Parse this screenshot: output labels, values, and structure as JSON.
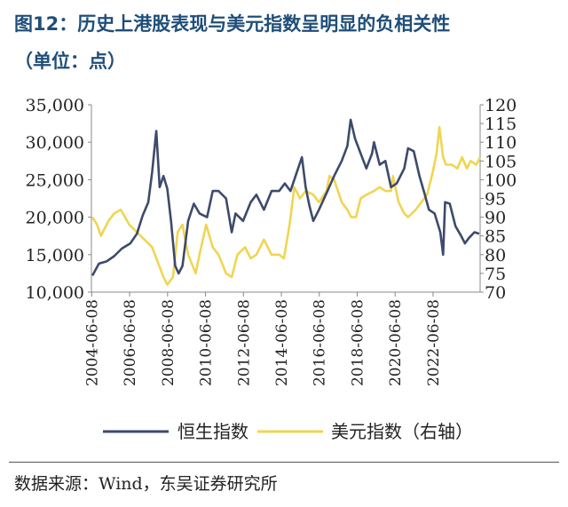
{
  "figure": {
    "title_line1": "图12：历史上港股表现与美元指数呈明显的负相关性",
    "title_line2": "（单位：点）",
    "source_label": "数据来源：",
    "source_text": "Wind，东吴证券研究所"
  },
  "colors": {
    "hsi": "#3d4a6b",
    "dxy": "#f0d552",
    "title": "#1f4e79"
  },
  "chart_data": {
    "type": "line",
    "title": "历史上港股表现与美元指数呈明显的负相关性",
    "ylabel_left": "",
    "ylabel_right": "",
    "x_ticks": [
      "2004-06-08",
      "2006-06-08",
      "2008-06-08",
      "2010-06-08",
      "2012-06-08",
      "2014-06-08",
      "2016-06-08",
      "2018-06-08",
      "2020-06-08",
      "2022-06-08"
    ],
    "x_range": [
      2004.4,
      2024.9
    ],
    "ylim_left": [
      10000,
      35000
    ],
    "ylim_right": [
      70,
      120
    ],
    "left_tick_labels": [
      "10,000",
      "15,000",
      "20,000",
      "25,000",
      "30,000",
      "35,000"
    ],
    "right_tick_labels": [
      "70",
      "75",
      "80",
      "85",
      "90",
      "95",
      "100",
      "105",
      "110",
      "115",
      "120"
    ],
    "series": [
      {
        "name": "恒生指数",
        "axis": "left",
        "x": [
          2004.45,
          2004.8,
          2005.2,
          2005.6,
          2006.0,
          2006.45,
          2006.8,
          2007.1,
          2007.4,
          2007.6,
          2007.82,
          2008.0,
          2008.2,
          2008.4,
          2008.6,
          2008.82,
          2009.0,
          2009.2,
          2009.5,
          2009.8,
          2010.1,
          2010.5,
          2010.8,
          2011.1,
          2011.5,
          2011.8,
          2012.0,
          2012.4,
          2012.8,
          2013.1,
          2013.5,
          2013.9,
          2014.3,
          2014.6,
          2014.9,
          2015.3,
          2015.5,
          2015.7,
          2015.9,
          2016.1,
          2016.4,
          2016.8,
          2017.2,
          2017.6,
          2017.9,
          2018.07,
          2018.3,
          2018.6,
          2018.9,
          2019.2,
          2019.3,
          2019.6,
          2019.9,
          2020.2,
          2020.5,
          2020.9,
          2021.1,
          2021.4,
          2021.7,
          2021.95,
          2022.2,
          2022.5,
          2022.8,
          2022.95,
          2023.05,
          2023.3,
          2023.6,
          2023.9,
          2024.1,
          2024.3,
          2024.6,
          2024.85
        ],
        "values": [
          12200,
          13800,
          14100,
          14800,
          15800,
          16500,
          17800,
          20200,
          22000,
          26000,
          31500,
          24000,
          25500,
          23800,
          19500,
          13500,
          12500,
          13500,
          19500,
          21800,
          20500,
          20000,
          23500,
          23500,
          22500,
          18000,
          20500,
          19500,
          22000,
          23000,
          21000,
          23500,
          23500,
          24500,
          23500,
          26500,
          28000,
          24000,
          21500,
          19500,
          21000,
          23200,
          25500,
          27500,
          29500,
          33000,
          30500,
          28500,
          26500,
          28500,
          30000,
          27000,
          27500,
          24000,
          24500,
          26500,
          29200,
          28800,
          25500,
          23300,
          21000,
          20500,
          18000,
          15000,
          22000,
          21800,
          18800,
          17500,
          16500,
          17200,
          18000,
          17800
        ]
      },
      {
        "name": "美元指数（右轴）",
        "axis": "right",
        "x": [
          2004.45,
          2004.7,
          2004.9,
          2005.3,
          2005.6,
          2005.95,
          2006.4,
          2006.8,
          2007.2,
          2007.6,
          2007.9,
          2008.2,
          2008.4,
          2008.7,
          2008.95,
          2009.2,
          2009.5,
          2009.9,
          2010.1,
          2010.45,
          2010.8,
          2011.1,
          2011.5,
          2011.8,
          2012.1,
          2012.5,
          2012.8,
          2013.1,
          2013.5,
          2013.9,
          2014.3,
          2014.55,
          2014.85,
          2015.1,
          2015.4,
          2015.7,
          2016.1,
          2016.4,
          2016.8,
          2016.95,
          2017.2,
          2017.6,
          2017.9,
          2018.1,
          2018.35,
          2018.6,
          2018.9,
          2019.3,
          2019.6,
          2019.9,
          2020.2,
          2020.3,
          2020.6,
          2020.9,
          2021.1,
          2021.5,
          2021.8,
          2022.1,
          2022.4,
          2022.6,
          2022.75,
          2022.95,
          2023.1,
          2023.4,
          2023.7,
          2023.95,
          2024.2,
          2024.4,
          2024.7,
          2024.9
        ],
        "values": [
          90,
          88,
          85,
          89,
          91,
          92,
          88,
          86,
          84,
          82,
          78,
          74,
          72,
          74,
          86,
          88,
          80,
          75,
          80,
          88,
          82,
          80,
          75,
          74,
          80,
          82,
          79,
          80,
          84,
          80,
          80,
          79,
          88,
          98,
          95,
          97,
          96,
          94,
          97,
          101,
          100,
          94,
          92,
          90,
          90,
          95,
          96,
          97,
          98,
          97,
          97,
          101,
          94,
          91,
          90,
          92,
          94,
          96,
          102,
          107,
          114,
          106,
          104,
          104,
          103,
          106,
          103,
          105,
          104,
          106
        ]
      }
    ],
    "legend": [
      "恒生指数",
      "美元指数（右轴）"
    ],
    "legend_position": "bottom"
  }
}
